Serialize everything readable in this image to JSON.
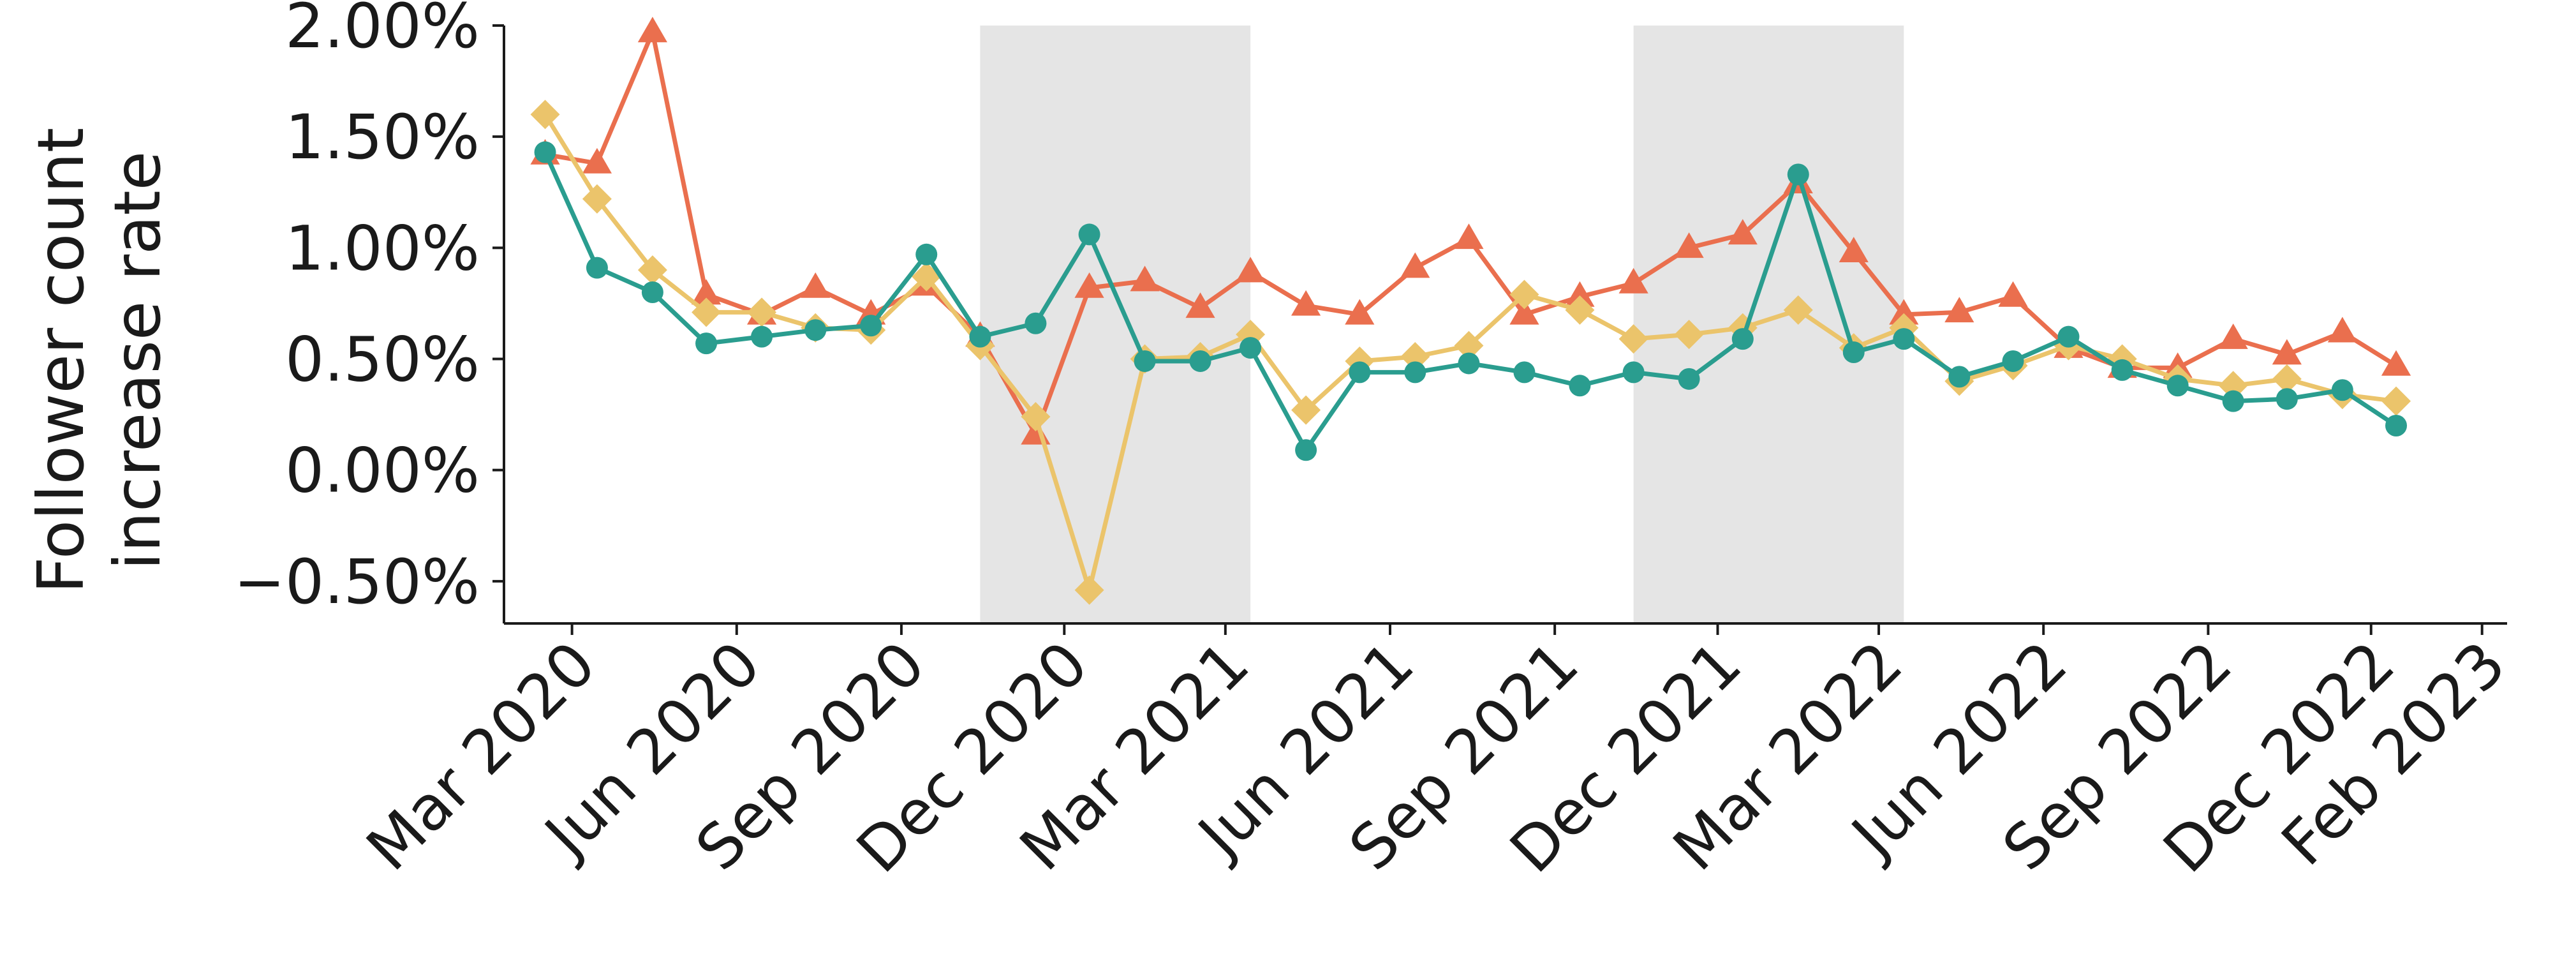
{
  "chart_data": {
    "type": "line",
    "ylabel_lines": [
      "Follower count",
      "increase rate"
    ],
    "ylim": [
      -0.69,
      2.0
    ],
    "yticks": [
      -0.5,
      0.0,
      0.5,
      1.0,
      1.5,
      2.0
    ],
    "ytick_labels": [
      "−0.50%",
      "0.00%",
      "0.50%",
      "1.00%",
      "1.50%",
      "2.00%"
    ],
    "xlim": [
      "2020-01-23",
      "2023-02-15"
    ],
    "xticks": [
      "2020-03-01",
      "2020-06-01",
      "2020-09-01",
      "2020-12-01",
      "2021-03-01",
      "2021-06-01",
      "2021-09-01",
      "2021-12-01",
      "2022-03-01",
      "2022-06-01",
      "2022-09-01",
      "2022-12-01",
      "2023-02-01"
    ],
    "xtick_labels": [
      "Mar 2020",
      "Jun 2020",
      "Sep 2020",
      "Dec 2020",
      "Mar 2021",
      "Jun 2021",
      "Sep 2021",
      "Dec 2021",
      "Mar 2022",
      "Jun 2022",
      "Sep 2022",
      "Dec 2022",
      "Feb 2023"
    ],
    "shaded_periods": [
      {
        "start": "2020-10-15",
        "end": "2021-03-15",
        "color": "#e5e5e5"
      },
      {
        "start": "2021-10-15",
        "end": "2022-03-15",
        "color": "#e5e5e5"
      }
    ],
    "x": [
      "2020-02-15",
      "2020-03-15",
      "2020-04-15",
      "2020-05-15",
      "2020-06-15",
      "2020-07-15",
      "2020-08-15",
      "2020-09-15",
      "2020-10-15",
      "2020-11-15",
      "2020-12-15",
      "2021-01-15",
      "2021-02-15",
      "2021-03-15",
      "2021-04-15",
      "2021-05-15",
      "2021-06-15",
      "2021-07-15",
      "2021-08-15",
      "2021-09-15",
      "2021-10-15",
      "2021-11-15",
      "2021-12-15",
      "2022-01-15",
      "2022-02-15",
      "2022-03-15",
      "2022-04-15",
      "2022-05-15",
      "2022-06-15",
      "2022-07-15",
      "2022-08-15",
      "2022-09-15",
      "2022-10-15",
      "2022-11-15",
      "2022-12-15",
      "2023-01-15"
    ],
    "series": [
      {
        "color": "#ea6f4e",
        "marker": "triangle",
        "values": [
          1.42,
          1.38,
          1.97,
          0.79,
          0.7,
          0.82,
          0.7,
          0.83,
          0.6,
          0.16,
          0.82,
          0.85,
          0.73,
          0.89,
          0.74,
          0.7,
          0.91,
          1.04,
          0.7,
          0.78,
          0.84,
          1.0,
          1.06,
          1.29,
          0.98,
          0.7,
          0.71,
          0.78,
          0.55,
          0.46,
          0.46,
          0.59,
          0.52,
          0.62,
          0.47,
          null
        ]
      },
      {
        "color": "#ebc46b",
        "marker": "diamond",
        "values": [
          1.6,
          1.22,
          0.9,
          0.71,
          0.71,
          0.64,
          0.63,
          0.87,
          0.56,
          0.24,
          -0.54,
          0.5,
          0.51,
          0.61,
          0.27,
          0.49,
          0.51,
          0.56,
          0.79,
          0.72,
          0.59,
          0.61,
          0.64,
          0.72,
          0.55,
          0.64,
          0.4,
          0.47,
          0.56,
          0.5,
          0.41,
          0.38,
          0.41,
          0.34,
          0.31,
          null
        ]
      },
      {
        "color": "#2a9d8f",
        "marker": "circle",
        "values": [
          1.43,
          0.91,
          0.8,
          0.57,
          0.6,
          0.63,
          0.65,
          0.97,
          0.6,
          0.66,
          1.06,
          0.49,
          0.49,
          0.55,
          0.09,
          0.44,
          0.44,
          0.48,
          0.44,
          0.38,
          0.44,
          0.41,
          0.59,
          1.33,
          0.53,
          0.59,
          0.42,
          0.49,
          0.6,
          0.45,
          0.38,
          0.31,
          0.32,
          0.36,
          0.2,
          null
        ]
      }
    ]
  }
}
